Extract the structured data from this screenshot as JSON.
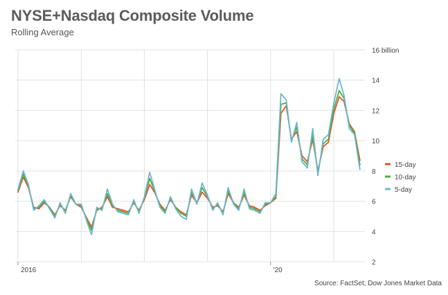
{
  "header": {
    "title": "NYSE+Nasdaq Composite Volume",
    "subtitle": "Rolling Average"
  },
  "footer": {
    "source": "Source: FactSet; Dow Jones Market Data"
  },
  "colors": {
    "day15": "#e8512d",
    "day10": "#4caf3b",
    "day5": "#6db6cf",
    "grid": "#e2e2e2",
    "text": "#444444"
  },
  "chart_data": {
    "type": "line",
    "title": "NYSE+Nasdaq Composite Volume",
    "subtitle": "Rolling Average",
    "ylabel": "",
    "ylim": [
      2,
      16
    ],
    "yticks": [
      2,
      4,
      6,
      8,
      10,
      12,
      14,
      16
    ],
    "ytick_labels": [
      "2",
      "4",
      "6",
      "8",
      "10",
      "12",
      "14",
      "16 billion"
    ],
    "xlim": [
      "2016-01-01",
      "2021-06-30"
    ],
    "xtick_labels": [
      {
        "label": "2016",
        "x": "2016-01-01"
      },
      {
        "label": "'20",
        "x": "2020-01-01"
      }
    ],
    "xgrid": [
      "2016-01-01",
      "2017-01-01",
      "2018-01-01",
      "2019-01-01",
      "2020-01-01",
      "2021-01-01"
    ],
    "grid": true,
    "legend": "right",
    "x": [
      "2016-01-01",
      "2016-02-01",
      "2016-03-01",
      "2016-04-01",
      "2016-05-01",
      "2016-06-01",
      "2016-07-01",
      "2016-08-01",
      "2016-09-01",
      "2016-10-01",
      "2016-11-01",
      "2016-12-01",
      "2017-01-01",
      "2017-02-01",
      "2017-03-01",
      "2017-04-01",
      "2017-05-01",
      "2017-06-01",
      "2017-07-01",
      "2017-08-01",
      "2017-09-01",
      "2017-10-01",
      "2017-11-01",
      "2017-12-01",
      "2018-01-01",
      "2018-02-01",
      "2018-03-01",
      "2018-04-01",
      "2018-05-01",
      "2018-06-01",
      "2018-07-01",
      "2018-08-01",
      "2018-09-01",
      "2018-10-01",
      "2018-11-01",
      "2018-12-01",
      "2019-01-01",
      "2019-02-01",
      "2019-03-01",
      "2019-04-01",
      "2019-05-01",
      "2019-06-01",
      "2019-07-01",
      "2019-08-01",
      "2019-09-01",
      "2019-10-01",
      "2019-11-01",
      "2019-12-01",
      "2020-01-01",
      "2020-02-01",
      "2020-03-01",
      "2020-04-01",
      "2020-05-01",
      "2020-06-01",
      "2020-07-01",
      "2020-08-01",
      "2020-09-01",
      "2020-10-01",
      "2020-11-01",
      "2020-12-01",
      "2021-01-01",
      "2021-02-01",
      "2021-03-01",
      "2021-04-01",
      "2021-05-01",
      "2021-06-01"
    ],
    "series": [
      {
        "name": "15-day",
        "color": "#e8512d",
        "values": [
          6.6,
          7.6,
          6.9,
          5.6,
          5.5,
          5.9,
          5.6,
          5.1,
          5.7,
          5.4,
          6.3,
          5.8,
          5.6,
          4.9,
          4.3,
          5.4,
          5.6,
          6.3,
          5.6,
          5.5,
          5.4,
          5.3,
          5.9,
          5.4,
          6.1,
          7.1,
          6.6,
          5.8,
          5.4,
          6.1,
          5.6,
          5.3,
          5.1,
          6.4,
          5.9,
          6.6,
          6.2,
          5.6,
          5.7,
          5.3,
          6.5,
          5.9,
          5.6,
          6.4,
          5.7,
          5.6,
          5.4,
          5.7,
          5.9,
          6.2,
          11.8,
          12.3,
          10.1,
          10.6,
          9.0,
          8.6,
          10.1,
          8.0,
          9.6,
          9.9,
          11.8,
          12.9,
          12.6,
          11.1,
          10.6,
          8.7
        ]
      },
      {
        "name": "10-day",
        "color": "#4caf3b",
        "values": [
          6.7,
          7.8,
          7.0,
          5.5,
          5.6,
          6.0,
          5.6,
          5.0,
          5.8,
          5.3,
          6.4,
          5.8,
          5.7,
          4.8,
          4.1,
          5.5,
          5.5,
          6.5,
          5.7,
          5.4,
          5.3,
          5.2,
          6.0,
          5.3,
          6.2,
          7.5,
          6.7,
          5.7,
          5.3,
          6.2,
          5.6,
          5.2,
          5.0,
          6.6,
          5.9,
          6.9,
          6.3,
          5.5,
          5.8,
          5.2,
          6.7,
          5.9,
          5.5,
          6.6,
          5.6,
          5.5,
          5.3,
          5.8,
          5.9,
          6.3,
          12.4,
          12.5,
          10.0,
          10.9,
          8.8,
          8.4,
          10.4,
          7.9,
          9.8,
          10.1,
          12.1,
          13.3,
          12.8,
          11.0,
          10.5,
          8.4
        ]
      },
      {
        "name": "5-day",
        "color": "#6db6cf",
        "values": [
          6.8,
          8.0,
          7.1,
          5.4,
          5.7,
          6.1,
          5.5,
          4.9,
          5.9,
          5.2,
          6.5,
          5.8,
          5.8,
          4.7,
          3.8,
          5.6,
          5.4,
          6.8,
          5.8,
          5.3,
          5.2,
          5.1,
          6.1,
          5.2,
          6.3,
          7.9,
          6.8,
          5.6,
          5.2,
          6.3,
          5.5,
          5.0,
          4.8,
          6.8,
          5.8,
          7.2,
          6.4,
          5.4,
          5.9,
          5.1,
          6.9,
          5.8,
          5.4,
          6.8,
          5.5,
          5.4,
          5.2,
          5.9,
          5.9,
          6.5,
          13.1,
          12.7,
          9.9,
          11.2,
          8.6,
          8.2,
          10.8,
          7.7,
          10.1,
          10.4,
          12.5,
          14.1,
          13.0,
          10.8,
          10.4,
          8.1
        ]
      }
    ]
  }
}
